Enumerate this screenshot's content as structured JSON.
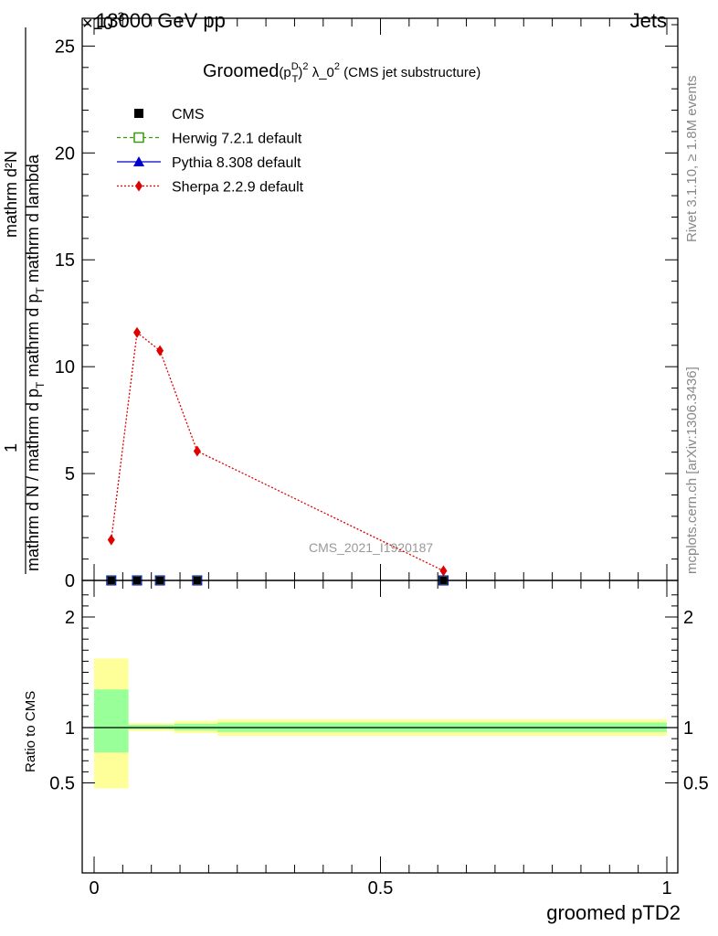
{
  "header": {
    "left": "13000 GeV pp",
    "right": "Jets",
    "exponent": "×10",
    "exponent_power": "-3"
  },
  "chart_data": [
    {
      "type": "line",
      "title_parts": {
        "prefix": "Groomed",
        "p": "(p",
        "sup_D": "D",
        "sub_T": "T",
        "close": ")",
        "sup_2": "2",
        "lambda": " λ_0",
        "sup_2b": "2",
        "suffix": " (CMS jet substructure)"
      },
      "ylabel_parts": {
        "numerator": "mathrm d²N",
        "denominator": "mathrm d N / mathrm d p",
        "denominator_sub_T": "T",
        "denominator_tail": "mathrm d p",
        "denominator_tail_sub_T": "T",
        "denominator_end": "mathrm d lambda",
        "one": "1"
      },
      "ylabel_text": "1 / (mathrm d N / mathrm d p_T) · mathrm d²N / (mathrm d p_T mathrm d lambda)",
      "ylim": [
        0,
        26.3
      ],
      "y_scale_factor": "×10^-3",
      "xlim": [
        -0.02,
        1.02
      ],
      "yticks": [
        0,
        5,
        10,
        15,
        20,
        25
      ],
      "ytick_labels": [
        "0",
        "5",
        "10",
        "15",
        "20",
        "25"
      ],
      "legend_position": "top-left",
      "series": [
        {
          "name": "CMS",
          "color": "#000000",
          "marker": "square-filled",
          "x": [
            0.03,
            0.075,
            0.115,
            0.18,
            0.61
          ],
          "y": [
            0.0,
            0.0,
            0.0,
            0.0,
            0.0
          ]
        },
        {
          "name": "Herwig 7.2.1 default",
          "color": "#3a9a0a",
          "marker": "square-open",
          "line": "dashed",
          "x": [],
          "y": []
        },
        {
          "name": "Pythia 8.308 default",
          "color": "#0000cc",
          "marker": "triangle",
          "line": "solid",
          "x": [],
          "y": []
        },
        {
          "name": "Sherpa 2.2.9 default",
          "color": "#e00000",
          "marker": "diamond",
          "line": "dotted",
          "x": [
            0.03,
            0.075,
            0.115,
            0.18,
            0.61
          ],
          "y": [
            1.9,
            11.6,
            10.75,
            6.05,
            0.45
          ]
        }
      ],
      "watermark": "CMS_2021_I1920187"
    },
    {
      "type": "area",
      "ylabel": "Ratio to CMS",
      "xlabel": "groomed pTD2",
      "xlim": [
        -0.02,
        1.02
      ],
      "ylim": [
        0.4,
        2.3
      ],
      "yticks": [
        0.5,
        1,
        2
      ],
      "ytick_labels": [
        "0.5",
        "1",
        "2"
      ],
      "xticks": [
        0,
        0.5,
        1
      ],
      "xtick_labels": [
        "0",
        "0.5",
        "1"
      ],
      "reference_line": 1.0,
      "bins": [
        {
          "x_low": 0.0,
          "x_high": 0.06,
          "stat_low": 0.775,
          "stat_high": 1.345,
          "total_low": 0.45,
          "total_high": 1.625
        },
        {
          "x_low": 0.06,
          "x_high": 0.14,
          "stat_low": 0.985,
          "stat_high": 1.025,
          "total_low": 0.97,
          "total_high": 1.04
        },
        {
          "x_low": 0.14,
          "x_high": 0.215,
          "stat_low": 0.975,
          "stat_high": 1.035,
          "total_low": 0.95,
          "total_high": 1.06
        },
        {
          "x_low": 0.215,
          "x_high": 1.0,
          "stat_low": 0.96,
          "stat_high": 1.045,
          "total_low": 0.925,
          "total_high": 1.075
        }
      ],
      "colors": {
        "stat": "#99ff99",
        "total": "#ffff99"
      }
    }
  ],
  "side_labels": {
    "rivet": "Rivet 3.1.10, ≥ 1.8M events",
    "mcplots": "mcplots.cern.ch [arXiv:1306.3436]"
  }
}
